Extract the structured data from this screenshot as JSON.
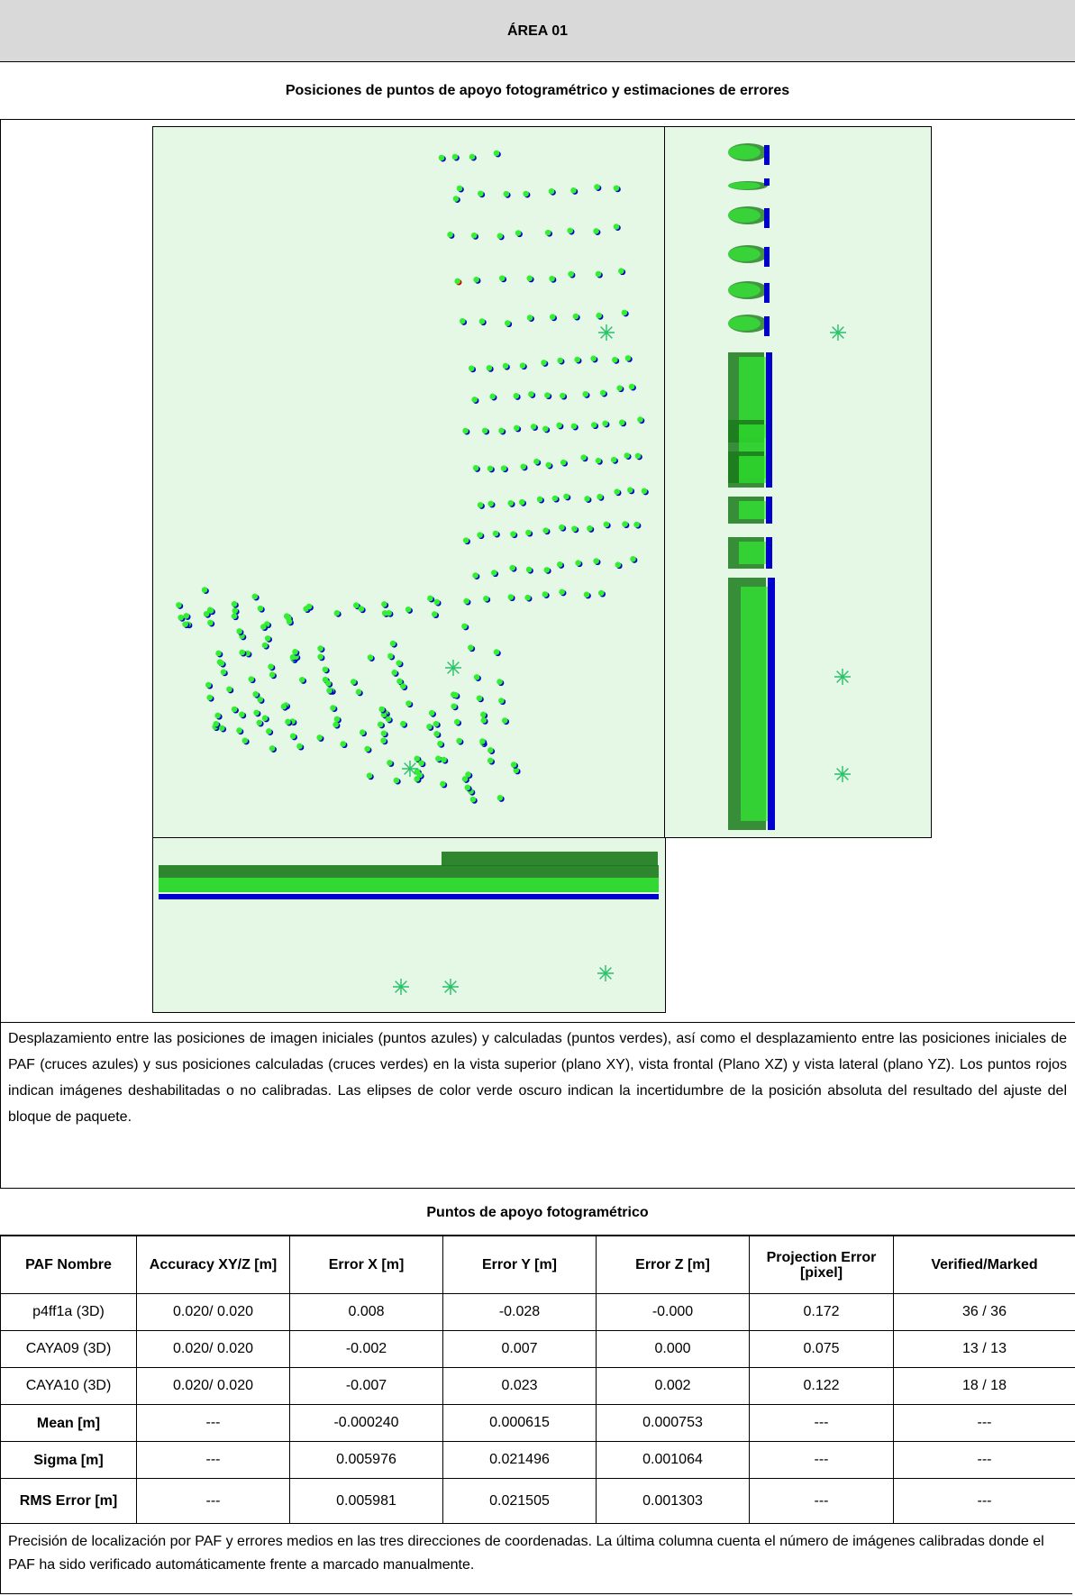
{
  "header": {
    "title": "ÁREA 01"
  },
  "section": {
    "subtitle": "Posiciones de puntos de apoyo fotogramétrico y estimaciones de errores"
  },
  "colors": {
    "panel_bg": "#e5f8e5",
    "initial_points": "#0000cc",
    "computed_points": "#33ee33",
    "uncertainty_ellipses": "#1a7a1a",
    "disabled_points": "#dd0000",
    "gcp_initial_cross": "#2244ee",
    "gcp_computed_cross": "#22cc55"
  },
  "description": "Desplazamiento entre las posiciones de imagen iniciales (puntos azules) y calculadas (puntos verdes), así como el desplazamiento entre las posiciones iniciales de PAF (cruces azules) y sus posiciones calculadas (cruces verdes) en la vista superior (plano XY), vista frontal (Plano XZ) y vista lateral (plano YZ). Los puntos rojos indican imágenes deshabilitadas o no calibradas. Las elipses de color verde oscuro indican la incertidumbre de la posición absoluta del resultado del ajuste del bloque de paquete.",
  "table": {
    "title": "Puntos de apoyo fotogramétrico",
    "columns": [
      "PAF Nombre",
      "Accuracy XY/Z [m]",
      "Error X [m]",
      "Error Y [m]",
      "Error Z [m]",
      "Projection Error [pixel]",
      "Verified/Marked"
    ],
    "rows": [
      [
        "p4ff1a (3D)",
        "0.020/ 0.020",
        "0.008",
        "-0.028",
        "-0.000",
        "0.172",
        "36 / 36"
      ],
      [
        "CAYA09 (3D)",
        "0.020/ 0.020",
        "-0.002",
        "0.007",
        "0.000",
        "0.075",
        "13 / 13"
      ],
      [
        "CAYA10 (3D)",
        "0.020/ 0.020",
        "-0.007",
        "0.023",
        "0.002",
        "0.122",
        "18 / 18"
      ]
    ],
    "summary": [
      [
        "Mean [m]",
        "---",
        "-0.000240",
        "0.000615",
        "0.000753",
        "---",
        "---"
      ],
      [
        "Sigma [m]",
        "---",
        "0.005976",
        "0.021496",
        "0.001064",
        "---",
        "---"
      ],
      [
        "RMS Error [m]",
        "---",
        "0.005981",
        "0.021505",
        "0.001303",
        "---",
        "---"
      ]
    ]
  },
  "footer_note": "Precisión de localización por PAF y errores medios en las tres direcciones de coordenadas. La última columna cuenta el número de imágenes calibradas donde el PAF ha sido verificado automáticamente frente a marcado manualmente."
}
